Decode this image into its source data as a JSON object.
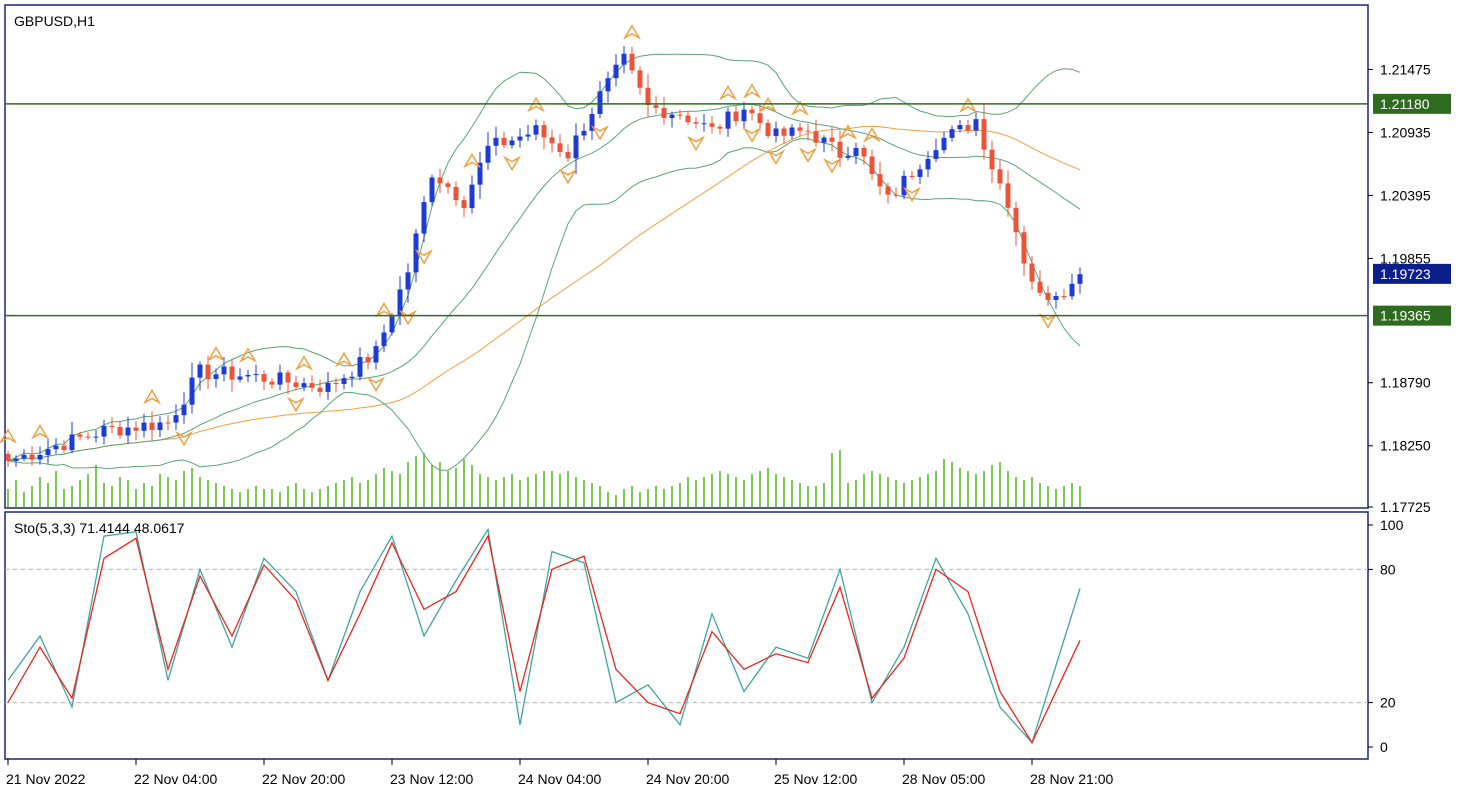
{
  "symbol_label": "GBPUSD,H1",
  "stoch_label": "Sto(5,3,3) 71.4144 48.0617",
  "colors": {
    "frame": "#1a237e",
    "bull_candle": "#1f3bd6",
    "bear_candle": "#e8553a",
    "bollinger": "#5aa574",
    "moving_average": "#f0a040",
    "fractal": "#f0a040",
    "volume": "#7cc95a",
    "level_line": "#2e6b1f",
    "level_tag_bg": "#2e6b1f",
    "price_tag_bg": "#0b1f8a",
    "stoch_main": "#3fa5a0",
    "stoch_signal": "#e8261c",
    "stoch_level_line": "#b0b0b0",
    "axis_text": "#000000"
  },
  "price_axis": {
    "min": 1.17725,
    "max": 1.2201,
    "ticks": [
      "1.21475",
      "1.20935",
      "1.20395",
      "1.19855",
      "1.18790",
      "1.18250",
      "1.17725"
    ]
  },
  "levels": [
    {
      "value": 1.2118,
      "label": "1.21180"
    },
    {
      "value": 1.19365,
      "label": "1.19365"
    }
  ],
  "current_price": {
    "value": 1.19723,
    "label": "1.19723"
  },
  "time_axis": {
    "labels": [
      "21 Nov 2022",
      "22 Nov 04:00",
      "22 Nov 20:00",
      "23 Nov 12:00",
      "24 Nov 04:00",
      "24 Nov 20:00",
      "25 Nov 12:00",
      "28 Nov 05:00",
      "28 Nov 21:00"
    ],
    "label_bar_index": [
      0,
      16,
      32,
      48,
      64,
      80,
      96,
      112,
      128
    ]
  },
  "stoch_axis": {
    "ticks": [
      "100",
      "80",
      "20",
      "0"
    ],
    "tick_values": [
      100,
      80,
      20,
      0
    ],
    "level_lines": [
      80,
      20
    ]
  },
  "chart_data": [
    {
      "type": "candlestick",
      "title": "GBPUSD,H1",
      "price_range": [
        1.17725,
        1.2201
      ],
      "key_points": [
        {
          "bar": 0,
          "close": 1.1812
        },
        {
          "bar": 12,
          "close": 1.1838
        },
        {
          "bar": 20,
          "close": 1.1845
        },
        {
          "bar": 24,
          "close": 1.1888
        },
        {
          "bar": 30,
          "close": 1.1885
        },
        {
          "bar": 40,
          "close": 1.1875
        },
        {
          "bar": 46,
          "close": 1.1905
        },
        {
          "bar": 50,
          "close": 1.1975
        },
        {
          "bar": 53,
          "close": 1.206
        },
        {
          "bar": 57,
          "close": 1.2035
        },
        {
          "bar": 60,
          "close": 1.208
        },
        {
          "bar": 62,
          "close": 1.2085
        },
        {
          "bar": 66,
          "close": 1.2095
        },
        {
          "bar": 70,
          "close": 1.2075
        },
        {
          "bar": 74,
          "close": 1.2125
        },
        {
          "bar": 77,
          "close": 1.2155
        },
        {
          "bar": 80,
          "close": 1.2115
        },
        {
          "bar": 84,
          "close": 1.211
        },
        {
          "bar": 88,
          "close": 1.2095
        },
        {
          "bar": 92,
          "close": 1.2115
        },
        {
          "bar": 96,
          "close": 1.209
        },
        {
          "bar": 100,
          "close": 1.2095
        },
        {
          "bar": 104,
          "close": 1.2075
        },
        {
          "bar": 106,
          "close": 1.2085
        },
        {
          "bar": 108,
          "close": 1.2055
        },
        {
          "bar": 110,
          "close": 1.2035
        },
        {
          "bar": 113,
          "close": 1.206
        },
        {
          "bar": 116,
          "close": 1.2085
        },
        {
          "bar": 119,
          "close": 1.2095
        },
        {
          "bar": 121,
          "close": 1.2105
        },
        {
          "bar": 123,
          "close": 1.2065
        },
        {
          "bar": 125,
          "close": 1.2035
        },
        {
          "bar": 127,
          "close": 1.1985
        },
        {
          "bar": 129,
          "close": 1.1952
        },
        {
          "bar": 131,
          "close": 1.1958
        },
        {
          "bar": 133,
          "close": 1.1962
        },
        {
          "bar": 134,
          "close": 1.1972
        }
      ],
      "num_bars": 135,
      "bollinger_period": 20,
      "moving_average_period": 50,
      "volume_relative": [
        0.3,
        0.45,
        0.25,
        0.35,
        0.5,
        0.4,
        0.6,
        0.3,
        0.35,
        0.45,
        0.55,
        0.7,
        0.4,
        0.35,
        0.5,
        0.45,
        0.3,
        0.4,
        0.35,
        0.55,
        0.5,
        0.45,
        0.6,
        0.65,
        0.5,
        0.45,
        0.4,
        0.35,
        0.3,
        0.25,
        0.3,
        0.35,
        0.3,
        0.3,
        0.25,
        0.35,
        0.4,
        0.3,
        0.25,
        0.3,
        0.35,
        0.4,
        0.45,
        0.5,
        0.4,
        0.45,
        0.55,
        0.65,
        0.6,
        0.55,
        0.75,
        0.85,
        0.9,
        0.7,
        0.75,
        0.6,
        0.65,
        0.8,
        0.7,
        0.55,
        0.5,
        0.45,
        0.5,
        0.55,
        0.45,
        0.5,
        0.55,
        0.6,
        0.6,
        0.55,
        0.6,
        0.5,
        0.45,
        0.4,
        0.35,
        0.25,
        0.2,
        0.3,
        0.35,
        0.25,
        0.3,
        0.35,
        0.3,
        0.35,
        0.4,
        0.5,
        0.45,
        0.5,
        0.55,
        0.6,
        0.55,
        0.5,
        0.45,
        0.55,
        0.6,
        0.65,
        0.55,
        0.5,
        0.45,
        0.4,
        0.35,
        0.35,
        0.4,
        0.9,
        0.95,
        0.4,
        0.45,
        0.55,
        0.6,
        0.55,
        0.5,
        0.45,
        0.4,
        0.45,
        0.5,
        0.55,
        0.6,
        0.8,
        0.75,
        0.65,
        0.6,
        0.55,
        0.6,
        0.7,
        0.75,
        0.6,
        0.5,
        0.45,
        0.5,
        0.4,
        0.35,
        0.3,
        0.35,
        0.4,
        0.35
      ],
      "fractals_up_bars": [
        0,
        4,
        18,
        26,
        30,
        37,
        42,
        47,
        58,
        66,
        78,
        90,
        93,
        95,
        99,
        105,
        108,
        120
      ],
      "fractals_down_bars": [
        22,
        36,
        46,
        50,
        52,
        63,
        70,
        74,
        86,
        93,
        96,
        100,
        103,
        113,
        130
      ]
    },
    {
      "type": "line",
      "title": "Sto(5,3,3) 71.4144 48.0617",
      "ylim": [
        0,
        100
      ],
      "level_lines": [
        80,
        20
      ],
      "x": [
        0,
        4,
        8,
        12,
        16,
        20,
        24,
        28,
        32,
        36,
        40,
        44,
        48,
        52,
        56,
        60,
        64,
        68,
        72,
        76,
        80,
        84,
        88,
        92,
        96,
        100,
        104,
        108,
        112,
        116,
        120,
        124,
        128,
        134
      ],
      "series": [
        {
          "name": "main",
          "values": [
            30,
            50,
            18,
            95,
            97,
            30,
            80,
            45,
            85,
            70,
            30,
            70,
            95,
            50,
            75,
            98,
            10,
            88,
            83,
            20,
            28,
            10,
            60,
            25,
            45,
            40,
            80,
            20,
            45,
            85,
            60,
            18,
            2,
            71.4144
          ]
        },
        {
          "name": "signal",
          "values": [
            20,
            45,
            22,
            85,
            94,
            35,
            77,
            50,
            82,
            66,
            30,
            60,
            92,
            62,
            70,
            95,
            25,
            80,
            86,
            35,
            20,
            15,
            52,
            35,
            42,
            38,
            72,
            22,
            40,
            80,
            70,
            25,
            2,
            48.0617
          ]
        }
      ]
    }
  ]
}
